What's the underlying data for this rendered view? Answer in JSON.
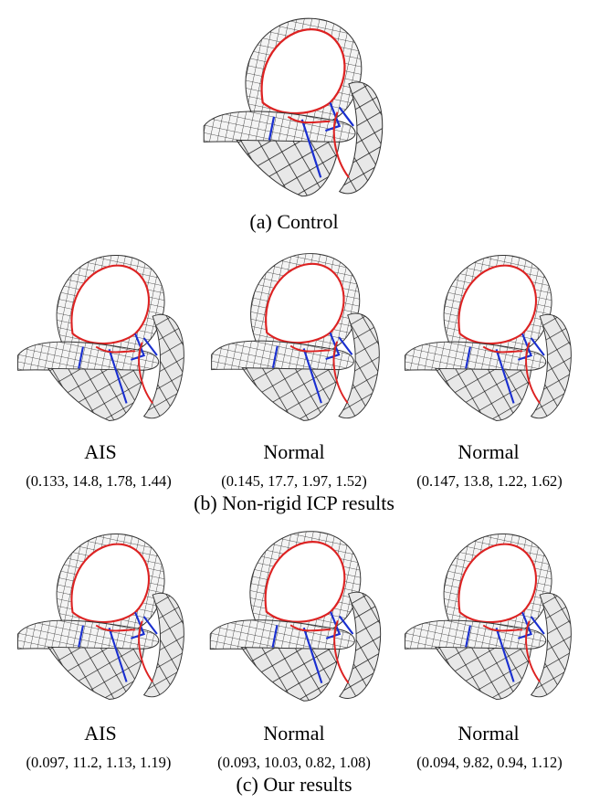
{
  "panels": [
    {
      "caption": "(a) Control"
    },
    {
      "caption": "(b) Non-rigid ICP results",
      "items": [
        {
          "label": "AIS",
          "metrics": "(0.133, 14.8, 1.78, 1.44)"
        },
        {
          "label": "Normal",
          "metrics": "(0.145, 17.7, 1.97, 1.52)"
        },
        {
          "label": "Normal",
          "metrics": "(0.147, 13.8, 1.22, 1.62)"
        }
      ]
    },
    {
      "caption": "(c) Our results",
      "items": [
        {
          "label": "AIS",
          "metrics": "(0.097, 11.2, 1.13, 1.19)"
        },
        {
          "label": "Normal",
          "metrics": "(0.093, 10.03, 0.82, 1.08)"
        },
        {
          "label": "Normal",
          "metrics": "(0.094, 9.82, 0.94, 1.12)"
        }
      ]
    }
  ]
}
